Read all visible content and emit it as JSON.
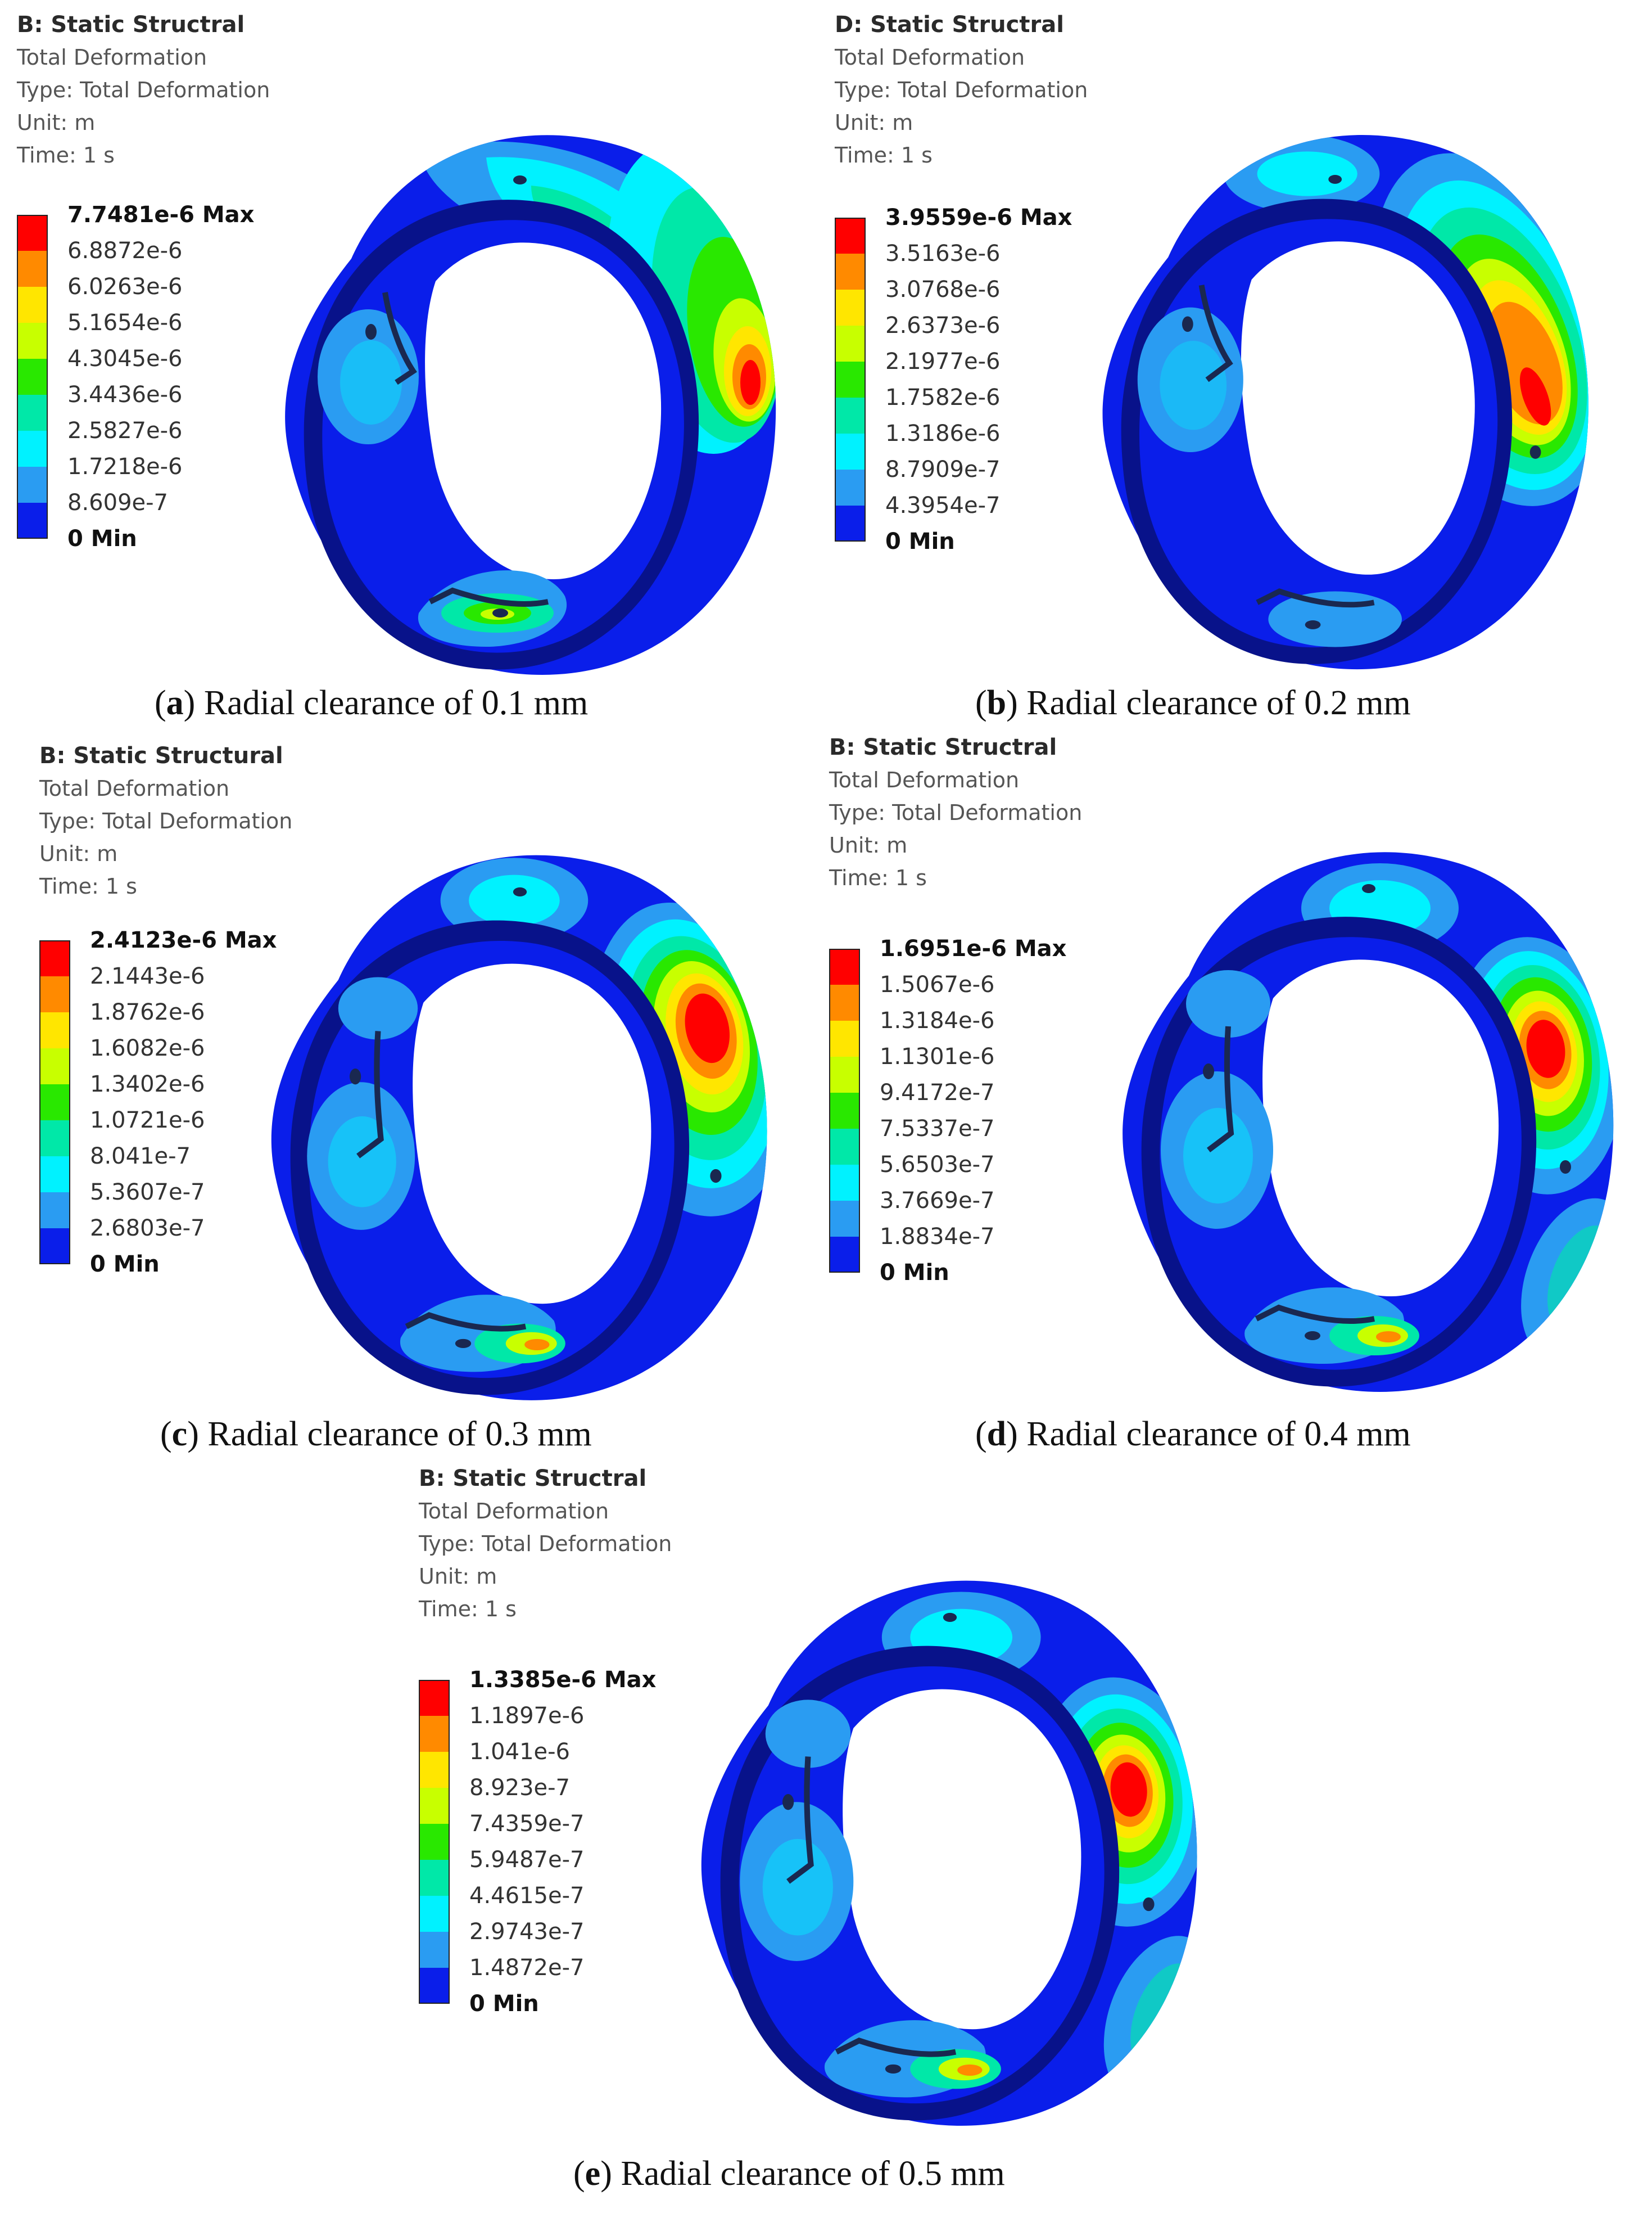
{
  "palette": [
    "#ff0000",
    "#ff8a00",
    "#ffe600",
    "#c8ff00",
    "#29e800",
    "#00e8a8",
    "#00f2ff",
    "#2a9cf2",
    "#0a1eea"
  ],
  "panels": [
    {
      "header": {
        "title": "B: Static Structral",
        "line1": "Total Deformation",
        "line2": "Type: Total Deformation",
        "line3": "Unit: m",
        "line4": "Time: 1 s"
      },
      "legend": [
        "7.7481e-6 Max",
        "6.8872e-6",
        "6.0263e-6",
        "5.1654e-6",
        "4.3045e-6",
        "3.4436e-6",
        "2.5827e-6",
        "1.7218e-6",
        "8.609e-7",
        "0 Min"
      ],
      "caption": {
        "letter": "a",
        "text": "Radial clearance of 0.1 mm"
      }
    },
    {
      "header": {
        "title": "D: Static Structral",
        "line1": "Total Deformation",
        "line2": "Type: Total Deformation",
        "line3": "Unit: m",
        "line4": "Time: 1 s"
      },
      "legend": [
        "3.9559e-6 Max",
        "3.5163e-6",
        "3.0768e-6",
        "2.6373e-6",
        "2.1977e-6",
        "1.7582e-6",
        "1.3186e-6",
        "8.7909e-7",
        "4.3954e-7",
        "0 Min"
      ],
      "caption": {
        "letter": "b",
        "text": "Radial clearance of 0.2 mm"
      }
    },
    {
      "header": {
        "title": "B: Static Structural",
        "line1": "Total Deformation",
        "line2": "Type: Total Deformation",
        "line3": "Unit: m",
        "line4": "Time: 1 s"
      },
      "legend": [
        "2.4123e-6 Max",
        "2.1443e-6",
        "1.8762e-6",
        "1.6082e-6",
        "1.3402e-6",
        "1.0721e-6",
        "8.041e-7",
        "5.3607e-7",
        "2.6803e-7",
        "0 Min"
      ],
      "caption": {
        "letter": "c",
        "text": "Radial clearance of 0.3 mm"
      }
    },
    {
      "header": {
        "title": "B: Static Structral",
        "line1": "Total Deformation",
        "line2": "Type: Total Deformation",
        "line3": "Unit: m",
        "line4": "Time: 1 s"
      },
      "legend": [
        "1.6951e-6 Max",
        "1.5067e-6",
        "1.3184e-6",
        "1.1301e-6",
        "9.4172e-7",
        "7.5337e-7",
        "5.6503e-7",
        "3.7669e-7",
        "1.8834e-7",
        "0 Min"
      ],
      "caption": {
        "letter": "d",
        "text": "Radial clearance of 0.4 mm"
      }
    },
    {
      "header": {
        "title": "B: Static Structral",
        "line1": "Total Deformation",
        "line2": "Type: Total Deformation",
        "line3": "Unit: m",
        "line4": "Time: 1 s"
      },
      "legend": [
        "1.3385e-6 Max",
        "1.1897e-6",
        "1.041e-6",
        "8.923e-7",
        "7.4359e-7",
        "5.9487e-7",
        "4.4615e-7",
        "2.9743e-7",
        "1.4872e-7",
        "0 Min"
      ],
      "caption": {
        "letter": "e",
        "text": "Radial clearance of 0.5 mm"
      }
    }
  ]
}
